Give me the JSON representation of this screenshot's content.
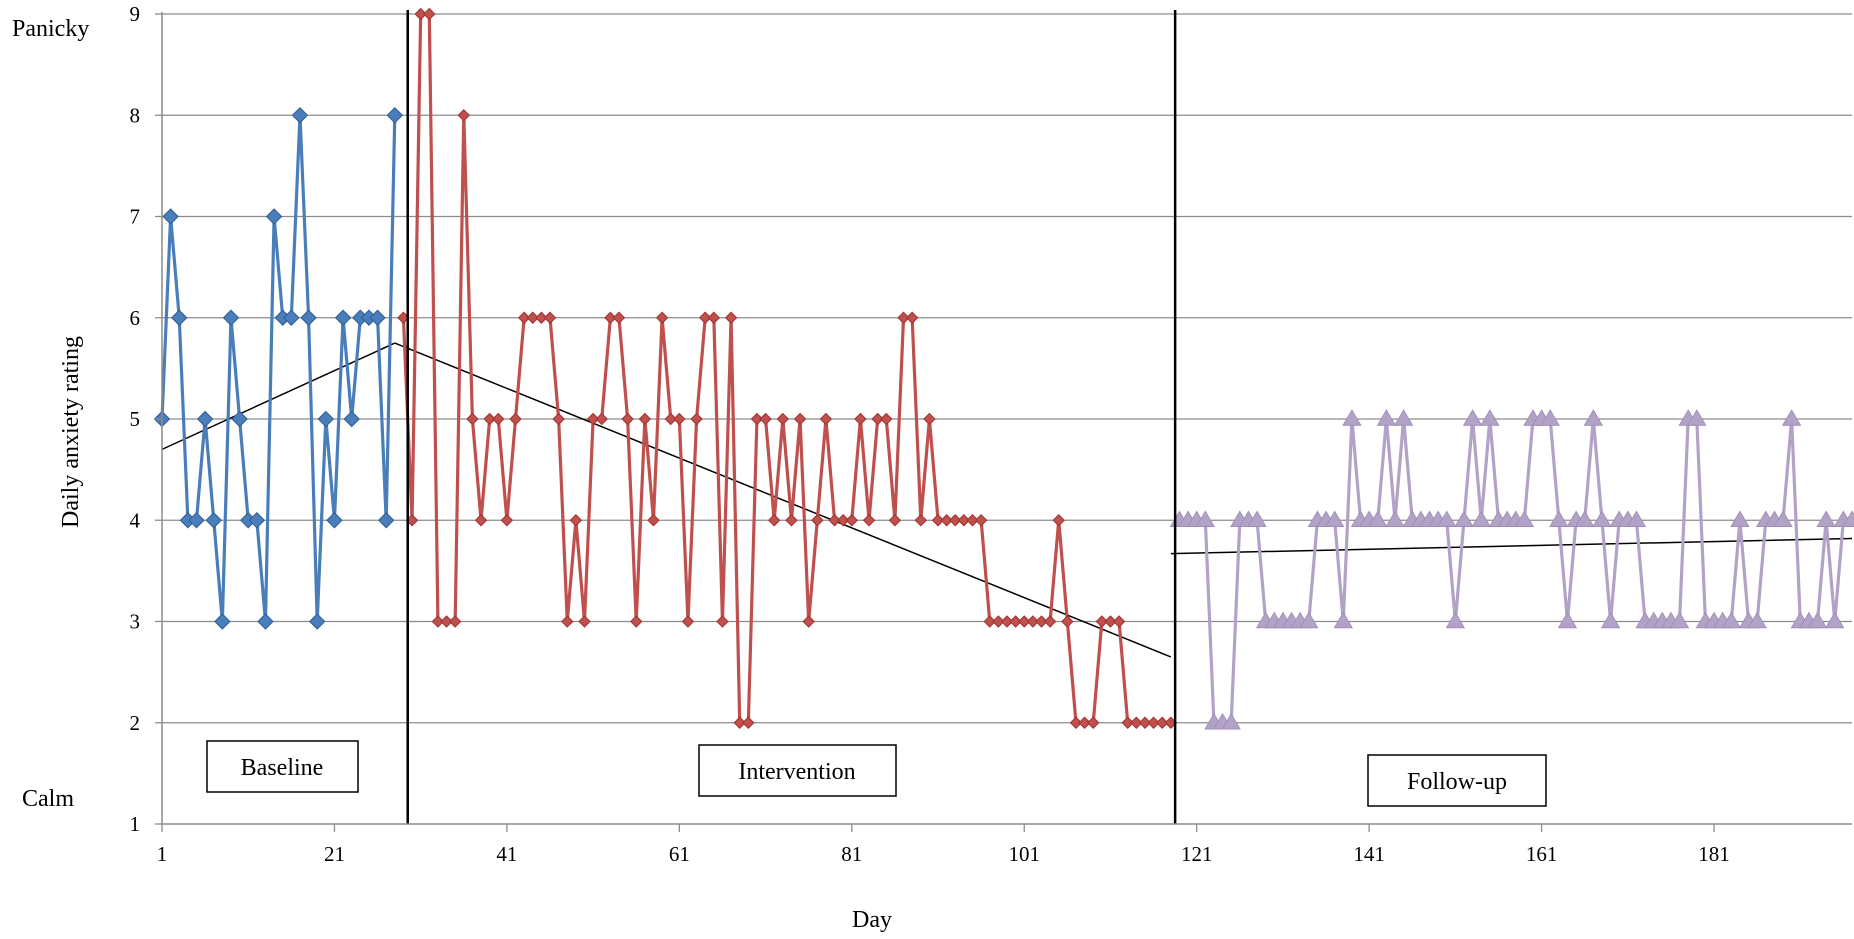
{
  "chart_data": {
    "type": "line",
    "title": "",
    "xlabel": "Day",
    "ylabel": "Daily anxiety rating",
    "xlim": [
      1,
      197
    ],
    "ylim": [
      1,
      9
    ],
    "x_ticks": [
      "1",
      "21",
      "41",
      "61",
      "81",
      "101",
      "121",
      "141",
      "161",
      "181"
    ],
    "x_tick_values": [
      1,
      21,
      41,
      61,
      81,
      101,
      121,
      141,
      161,
      181
    ],
    "y_ticks": [
      "1",
      "2",
      "3",
      "4",
      "5",
      "6",
      "7",
      "8",
      "9"
    ],
    "y_anchor_labels": {
      "top": "Panicky",
      "bottom": "Calm"
    },
    "grid": "horizontal",
    "phase_lines": [
      29.5,
      118.5
    ],
    "phase_labels": [
      "Baseline",
      "Intervention",
      "Follow-up"
    ],
    "series": [
      {
        "marker": "diamond",
        "color": "#4A7EBB",
        "x": [
          1,
          2,
          3,
          4,
          5,
          6,
          7,
          8,
          9,
          10,
          11,
          12,
          13,
          14,
          15,
          16,
          17,
          18,
          19,
          20,
          21,
          22,
          23,
          24,
          25,
          26,
          27,
          28
        ],
        "y": [
          5,
          7,
          6,
          4,
          4,
          5,
          4,
          3,
          6,
          5,
          4,
          4,
          3,
          7,
          6,
          6,
          8,
          6,
          3,
          5,
          4,
          6,
          5,
          6,
          6,
          6,
          4,
          8
        ]
      },
      {
        "marker": "diamond",
        "color": "#C0504D",
        "x": [
          29,
          30,
          31,
          32,
          33,
          34,
          35,
          36,
          37,
          38,
          39,
          40,
          41,
          42,
          43,
          44,
          45,
          46,
          47,
          48,
          49,
          50,
          51,
          52,
          53,
          54,
          55,
          56,
          57,
          58,
          59,
          60,
          61,
          62,
          63,
          64,
          65,
          66,
          67,
          68,
          69,
          70,
          71,
          72,
          73,
          74,
          75,
          76,
          77,
          78,
          79,
          80,
          81,
          82,
          83,
          84,
          85,
          86,
          87,
          88,
          89,
          90,
          91,
          92,
          93,
          94,
          95,
          96,
          97,
          98,
          99,
          100,
          101,
          102,
          103,
          104,
          105,
          106,
          107,
          108,
          109,
          110,
          111,
          112,
          113,
          114,
          115,
          116,
          117,
          118
        ],
        "y": [
          6,
          4,
          9,
          9,
          3,
          3,
          3,
          8,
          5,
          4,
          5,
          5,
          4,
          5,
          6,
          6,
          6,
          6,
          5,
          3,
          4,
          3,
          5,
          5,
          6,
          6,
          5,
          3,
          5,
          4,
          6,
          5,
          5,
          3,
          5,
          6,
          6,
          3,
          6,
          2,
          2,
          5,
          5,
          4,
          5,
          4,
          5,
          3,
          4,
          5,
          4,
          4,
          4,
          5,
          4,
          5,
          5,
          4,
          6,
          6,
          4,
          5,
          4,
          4,
          4,
          4,
          4,
          4,
          3,
          3,
          3,
          3,
          3,
          3,
          3,
          3,
          4,
          3,
          2,
          2,
          2,
          3,
          3,
          3,
          2,
          2,
          2,
          2,
          2,
          2
        ]
      },
      {
        "marker": "triangle",
        "color": "#B3A2C7",
        "x": [
          119,
          120,
          121,
          122,
          123,
          124,
          125,
          126,
          127,
          128,
          129,
          130,
          131,
          132,
          133,
          134,
          135,
          136,
          137,
          138,
          139,
          140,
          141,
          142,
          143,
          144,
          145,
          146,
          147,
          148,
          149,
          150,
          151,
          152,
          153,
          154,
          155,
          156,
          157,
          158,
          159,
          160,
          161,
          162,
          163,
          164,
          165,
          166,
          167,
          168,
          169,
          170,
          171,
          172,
          173,
          174,
          175,
          176,
          177,
          178,
          179,
          180,
          181,
          182,
          183,
          184,
          185,
          186,
          187,
          188,
          189,
          190,
          191,
          192,
          193,
          194,
          195,
          196,
          197
        ],
        "y": [
          4,
          4,
          4,
          4,
          2,
          2,
          2,
          4,
          4,
          4,
          3,
          3,
          3,
          3,
          3,
          3,
          4,
          4,
          4,
          3,
          5,
          4,
          4,
          4,
          5,
          4,
          5,
          4,
          4,
          4,
          4,
          4,
          3,
          4,
          5,
          4,
          5,
          4,
          4,
          4,
          4,
          5,
          5,
          5,
          4,
          3,
          4,
          4,
          5,
          4,
          3,
          4,
          4,
          4,
          3,
          3,
          3,
          3,
          3,
          5,
          5,
          3,
          3,
          3,
          3,
          4,
          3,
          3,
          4,
          4,
          4,
          5,
          3,
          3,
          3,
          4,
          3,
          4,
          4
        ]
      }
    ],
    "trend_lines": [
      {
        "x": [
          1,
          28
        ],
        "y": [
          4.7,
          5.75
        ]
      },
      {
        "x": [
          28,
          118
        ],
        "y": [
          5.75,
          2.65
        ]
      },
      {
        "x": [
          118,
          197
        ],
        "y": [
          3.67,
          3.82
        ]
      }
    ]
  }
}
